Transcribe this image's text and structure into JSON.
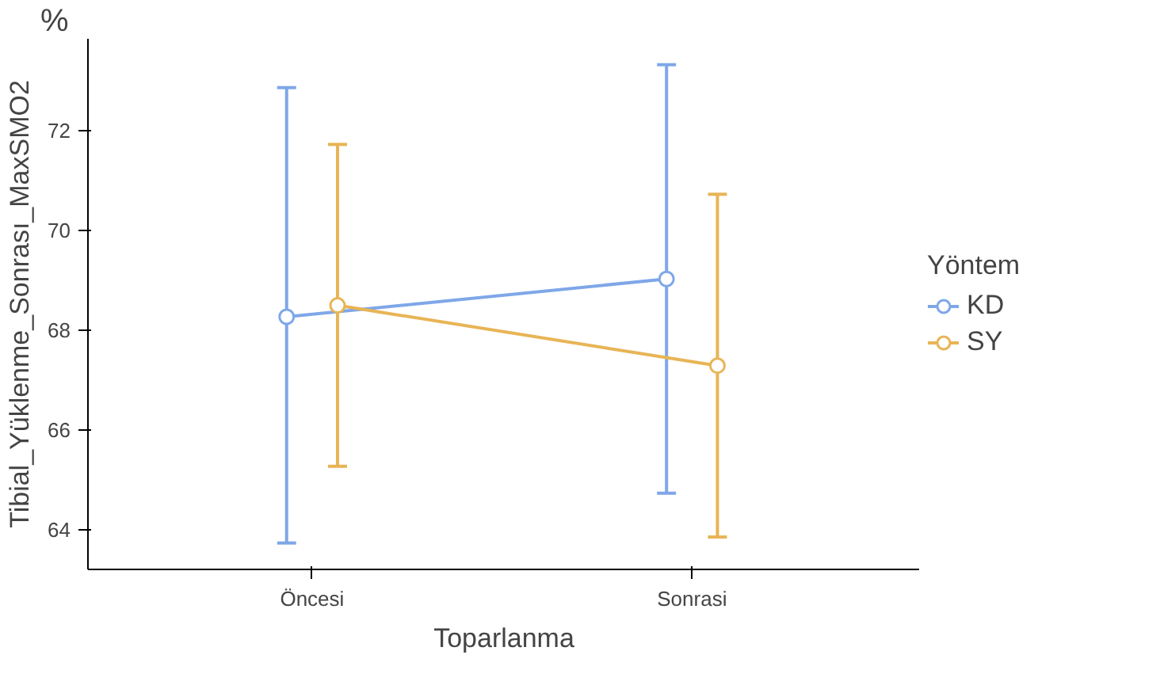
{
  "chart_data": {
    "type": "line",
    "xlabel": "Toparlanma",
    "ylabel": "Tibial_Yüklenme_Sonrası_MaxSMO2",
    "legend_title": "Yöntem",
    "categories": [
      "Öncesi",
      "Sonrasi"
    ],
    "series": [
      {
        "name": "KD",
        "color": "#7fa7e8",
        "values": [
          68.27,
          69.03
        ],
        "errors": [
          [
            63.73,
            72.87
          ],
          [
            64.73,
            73.33
          ]
        ]
      },
      {
        "name": "SY",
        "color": "#e8b455",
        "values": [
          68.5,
          67.29
        ],
        "errors": [
          [
            65.27,
            71.73
          ],
          [
            63.85,
            70.73
          ]
        ]
      }
    ],
    "ylim": [
      63.2,
      73.85
    ],
    "yticks": [
      64,
      66,
      68,
      70,
      72
    ],
    "grid": false,
    "legend": "right",
    "marker": "circle",
    "line_style": "solid",
    "annotations": [
      "%"
    ]
  }
}
